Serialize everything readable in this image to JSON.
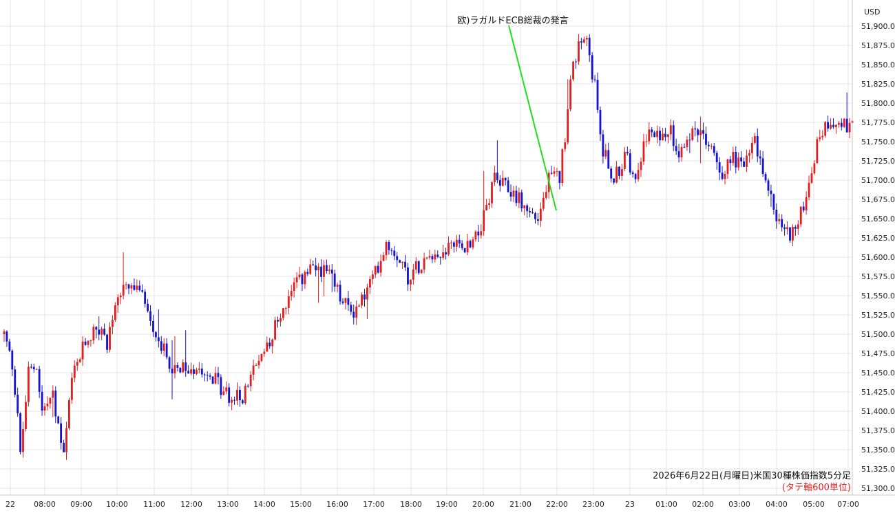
{
  "currency_label": "USD",
  "annotation": {
    "text": "欧)ラガルドECB総裁の発言"
  },
  "footer": {
    "title": "2026年6月22日(月曜日)米国30種株価指数5分足",
    "note": "(タテ軸600単位)"
  },
  "colors": {
    "up": "#e02020",
    "down": "#1515d0",
    "grid": "#e6e6e6",
    "annotation_line": "#22dd22",
    "note": "#e02020"
  },
  "chart_data": {
    "type": "candlestick",
    "interval": "5m",
    "ylim": [
      51290,
      51910
    ],
    "y_ticks": [
      "51,300.0",
      "51,325.0",
      "51,350.0",
      "51,375.0",
      "51,400.0",
      "51,425.0",
      "51,450.0",
      "51,475.0",
      "51,500.0",
      "51,525.0",
      "51,550.0",
      "51,575.0",
      "51,600.0",
      "51,625.0",
      "51,650.0",
      "51,675.0",
      "51,700.0",
      "51,725.0",
      "51,750.0",
      "51,775.0",
      "51,800.0",
      "51,825.0",
      "51,850.0",
      "51,875.0",
      "51,900.0"
    ],
    "x_ticks": [
      "22",
      "08:00",
      "09:00",
      "10:00",
      "11:00",
      "12:00",
      "13:00",
      "14:00",
      "15:00",
      "16:00",
      "17:00",
      "18:00",
      "19:00",
      "20:00",
      "21:00",
      "22:00",
      "23:00",
      "23",
      "01:00",
      "02:00",
      "03:00",
      "04:00",
      "05:00",
      "07:00"
    ],
    "annotation_time": "22:00",
    "key_points": [
      [
        0,
        51500
      ],
      [
        3,
        51460
      ],
      [
        5,
        51400
      ],
      [
        6,
        51340
      ],
      [
        9,
        51450
      ],
      [
        12,
        51460
      ],
      [
        14,
        51400
      ],
      [
        18,
        51420
      ],
      [
        22,
        51340
      ],
      [
        25,
        51440
      ],
      [
        30,
        51490
      ],
      [
        34,
        51510
      ],
      [
        38,
        51490
      ],
      [
        42,
        51550
      ],
      [
        47,
        51560
      ],
      [
        52,
        51545
      ],
      [
        56,
        51500
      ],
      [
        60,
        51470
      ],
      [
        64,
        51450
      ],
      [
        68,
        51455
      ],
      [
        72,
        51460
      ],
      [
        76,
        51450
      ],
      [
        80,
        51430
      ],
      [
        84,
        51415
      ],
      [
        88,
        51420
      ],
      [
        92,
        51450
      ],
      [
        96,
        51480
      ],
      [
        100,
        51510
      ],
      [
        104,
        51540
      ],
      [
        108,
        51565
      ],
      [
        112,
        51580
      ],
      [
        117,
        51585
      ],
      [
        121,
        51570
      ],
      [
        125,
        51540
      ],
      [
        129,
        51530
      ],
      [
        133,
        51550
      ],
      [
        137,
        51580
      ],
      [
        141,
        51620
      ],
      [
        145,
        51605
      ],
      [
        149,
        51575
      ],
      [
        153,
        51590
      ],
      [
        157,
        51610
      ],
      [
        161,
        51600
      ],
      [
        165,
        51620
      ],
      [
        169,
        51610
      ],
      [
        173,
        51625
      ],
      [
        177,
        51650
      ],
      [
        181,
        51700
      ],
      [
        185,
        51690
      ],
      [
        189,
        51680
      ],
      [
        193,
        51660
      ],
      [
        197,
        51650
      ],
      [
        201,
        51700
      ],
      [
        205,
        51705
      ],
      [
        207,
        51760
      ],
      [
        209,
        51840
      ],
      [
        212,
        51870
      ],
      [
        215,
        51880
      ],
      [
        218,
        51820
      ],
      [
        221,
        51740
      ],
      [
        225,
        51700
      ],
      [
        229,
        51730
      ],
      [
        233,
        51710
      ],
      [
        237,
        51760
      ],
      [
        241,
        51755
      ],
      [
        245,
        51770
      ],
      [
        249,
        51740
      ],
      [
        253,
        51760
      ],
      [
        257,
        51760
      ],
      [
        261,
        51740
      ],
      [
        265,
        51710
      ],
      [
        269,
        51730
      ],
      [
        273,
        51720
      ],
      [
        277,
        51750
      ],
      [
        281,
        51700
      ],
      [
        285,
        51650
      ],
      [
        289,
        51630
      ],
      [
        293,
        51640
      ],
      [
        297,
        51700
      ],
      [
        301,
        51760
      ],
      [
        305,
        51780
      ],
      [
        309,
        51770
      ],
      [
        313,
        51770
      ]
    ],
    "candle_count": 314
  }
}
